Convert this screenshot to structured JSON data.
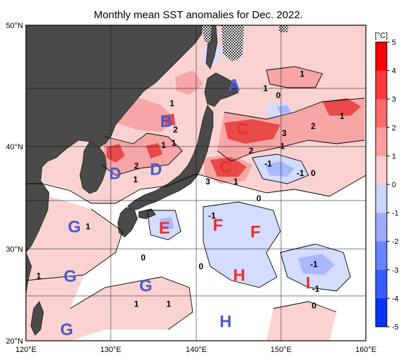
{
  "title": "Monthly mean SST anomalies for Dec. 2022.",
  "axes": {
    "lon_labels": [
      "120°E",
      "130°E",
      "140°E",
      "150°E",
      "160°E"
    ],
    "lat_labels": [
      "50°N",
      "40°N",
      "30°N",
      "20°N"
    ]
  },
  "colorbar": {
    "unit": "[°C]",
    "ticks": [
      "5",
      "4",
      "3",
      "2",
      "1",
      "0",
      "-1",
      "-2",
      "-3",
      "-4",
      "-5"
    ],
    "colors": [
      "#ff0000",
      "#ff3a3a",
      "#ff6b6b",
      "#ff9c9c",
      "#ffcdcd",
      "#ffffff",
      "#cdd6ff",
      "#9cadff",
      "#6b84ff",
      "#3a5bff",
      "#0a32ff"
    ]
  },
  "regions": [
    {
      "label": "A",
      "color": "blue",
      "lon": 144.5,
      "lat": 45.1
    },
    {
      "label": "B",
      "color": "blue",
      "lon": 136.5,
      "lat": 42.0
    },
    {
      "label": "C",
      "color": "red",
      "lon": 145.5,
      "lat": 41.3
    },
    {
      "label": "C",
      "color": "red",
      "lon": 143.5,
      "lat": 37.8
    },
    {
      "label": "D",
      "color": "blue",
      "lon": 130.5,
      "lat": 37.2
    },
    {
      "label": "D",
      "color": "blue",
      "lon": 135.3,
      "lat": 37.6
    },
    {
      "label": "E",
      "color": "red",
      "lon": 136.3,
      "lat": 31.9
    },
    {
      "label": "F",
      "color": "red",
      "lon": 142.6,
      "lat": 32.2
    },
    {
      "label": "F",
      "color": "red",
      "lon": 147.0,
      "lat": 31.5
    },
    {
      "label": "G",
      "color": "blue",
      "lon": 125.7,
      "lat": 32.0
    },
    {
      "label": "G",
      "color": "blue",
      "lon": 125.2,
      "lat": 26.9
    },
    {
      "label": "G",
      "color": "blue",
      "lon": 134.1,
      "lat": 25.9
    },
    {
      "label": "G",
      "color": "blue",
      "lon": 124.8,
      "lat": 21.1
    },
    {
      "label": "H",
      "color": "red",
      "lon": 145.1,
      "lat": 27.0
    },
    {
      "label": "H",
      "color": "blue",
      "lon": 143.5,
      "lat": 22.0
    },
    {
      "label": "I",
      "color": "red",
      "lon": 153.2,
      "lat": 26.2
    }
  ],
  "contour_labels": [
    {
      "text": "0",
      "lon": 149.7,
      "lat": 44.3
    },
    {
      "text": "1",
      "lon": 148.2,
      "lat": 44.9
    },
    {
      "text": "1",
      "lon": 152.5,
      "lat": 46.1
    },
    {
      "text": "1",
      "lon": 137.2,
      "lat": 43.6
    },
    {
      "text": "2",
      "lon": 137.6,
      "lat": 41.3
    },
    {
      "text": "1",
      "lon": 136.2,
      "lat": 39.9
    },
    {
      "text": "1",
      "lon": 137.4,
      "lat": 40.1
    },
    {
      "text": "2",
      "lon": 133.0,
      "lat": 38.0
    },
    {
      "text": "1",
      "lon": 132.9,
      "lat": 36.7
    },
    {
      "text": "1",
      "lon": 157.2,
      "lat": 42.5
    },
    {
      "text": "2",
      "lon": 153.8,
      "lat": 41.6
    },
    {
      "text": "3",
      "lon": 150.4,
      "lat": 41.0
    },
    {
      "text": "1",
      "lon": 150.2,
      "lat": 39.8
    },
    {
      "text": "2",
      "lon": 146.5,
      "lat": 39.4
    },
    {
      "text": "-1",
      "lon": 148.5,
      "lat": 38.2
    },
    {
      "text": "-1",
      "lon": 152.3,
      "lat": 37.3
    },
    {
      "text": "0",
      "lon": 153.8,
      "lat": 37.3
    },
    {
      "text": "3",
      "lon": 141.4,
      "lat": 36.5
    },
    {
      "text": "1",
      "lon": 144.7,
      "lat": 36.5
    },
    {
      "text": "0",
      "lon": 147.4,
      "lat": 34.9
    },
    {
      "text": "-1",
      "lon": 141.9,
      "lat": 33.2
    },
    {
      "text": "1",
      "lon": 127.3,
      "lat": 32.1
    },
    {
      "text": "0",
      "lon": 133.8,
      "lat": 28.9
    },
    {
      "text": "0",
      "lon": 140.6,
      "lat": 28.0
    },
    {
      "text": "-1",
      "lon": 153.9,
      "lat": 28.2
    },
    {
      "text": "-1",
      "lon": 154.1,
      "lat": 25.6
    },
    {
      "text": "1",
      "lon": 121.5,
      "lat": 27.0
    },
    {
      "text": "1",
      "lon": 133.0,
      "lat": 24.0
    },
    {
      "text": "1",
      "lon": 136.8,
      "lat": 24.0
    },
    {
      "text": "0",
      "lon": 153.9,
      "lat": 23.8
    }
  ]
}
